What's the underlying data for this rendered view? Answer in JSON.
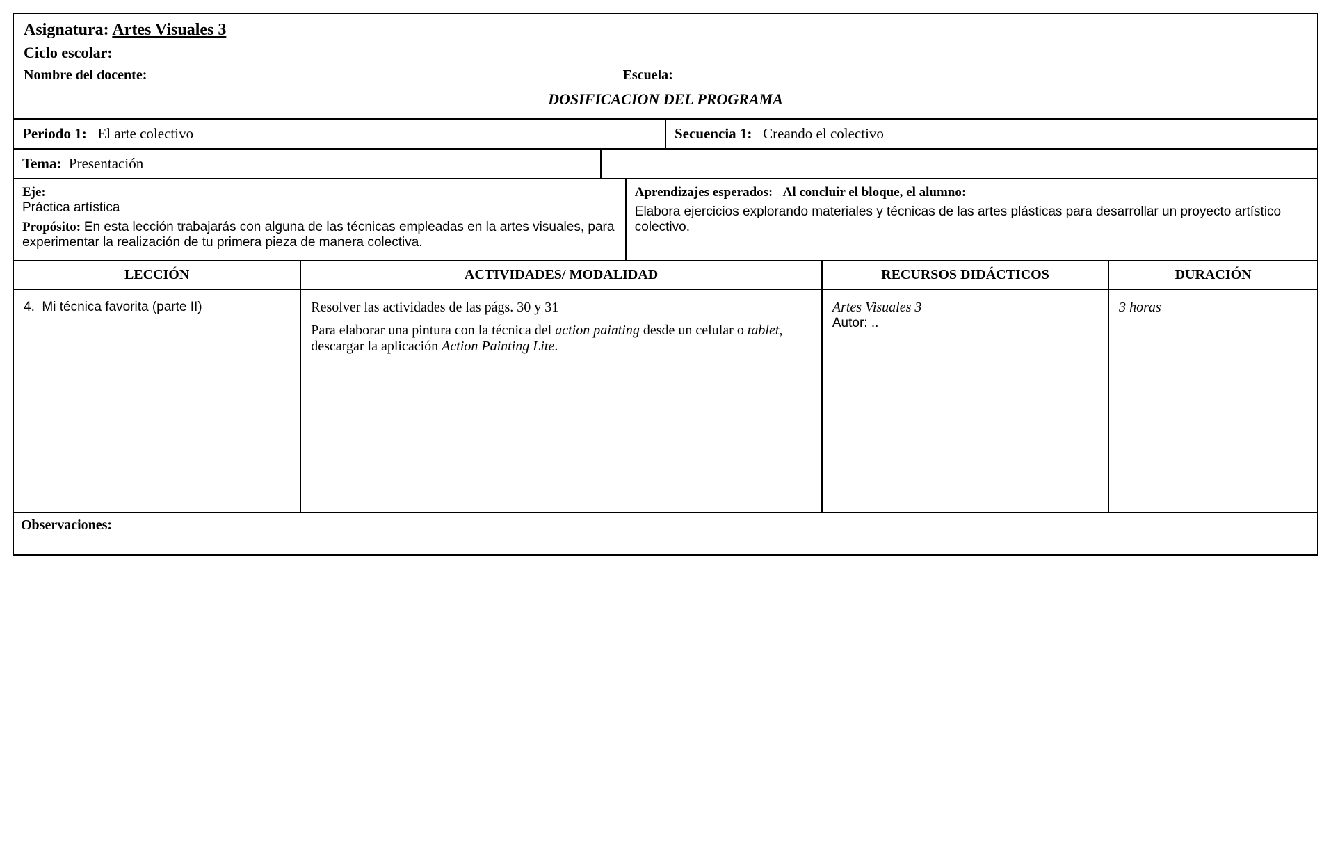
{
  "header": {
    "asignatura_label": "Asignatura:",
    "asignatura_value": "Artes Visuales 3",
    "ciclo_label": "Ciclo escolar:",
    "nombre_label": "Nombre del docente:",
    "escuela_label": "Escuela:",
    "programa_title": "DOSIFICACION DEL PROGRAMA"
  },
  "periodo": {
    "label": "Periodo 1:",
    "value": "El arte colectivo"
  },
  "secuencia": {
    "label": "Secuencia 1:",
    "value": "Creando el colectivo"
  },
  "tema": {
    "label": "Tema:",
    "value": "Presentación"
  },
  "eje": {
    "label": "Eje:",
    "value": "Práctica artística",
    "proposito_label": "Propósito:",
    "proposito_value": "En esta lección trabajarás con alguna de las técnicas empleadas en la artes visuales, para experimentar la realización de tu primera pieza de manera colectiva."
  },
  "aprendizajes": {
    "label": "Aprendizajes esperados:",
    "subtitle": "Al concluir el bloque, el alumno:",
    "body": "Elabora ejercicios explorando materiales y técnicas de las artes plásticas para desarrollar un proyecto artístico colectivo."
  },
  "table": {
    "headers": {
      "leccion": "LECCIÓN",
      "actividades": "ACTIVIDADES/ MODALIDAD",
      "recursos": "RECURSOS DIDÁCTICOS",
      "duracion": "DURACIÓN"
    },
    "row": {
      "leccion_num": "4.",
      "leccion_title": "Mi técnica favorita (parte II)",
      "act_line1_pre": "Resolver las actividades de las págs. 30 y 31",
      "act_line2_a": "Para elaborar una pintura con la técnica del ",
      "act_line2_b": "action painting",
      "act_line2_c": " desde un celular o ",
      "act_line2_d": "tablet",
      "act_line2_e": ", descargar la aplicación ",
      "act_line2_f": "Action Painting Lite",
      "act_line2_g": ".",
      "recurso_title": "Artes Visuales 3",
      "recurso_autor": "Autor: ..",
      "duracion": "3 horas"
    }
  },
  "observaciones_label": "Observaciones:"
}
